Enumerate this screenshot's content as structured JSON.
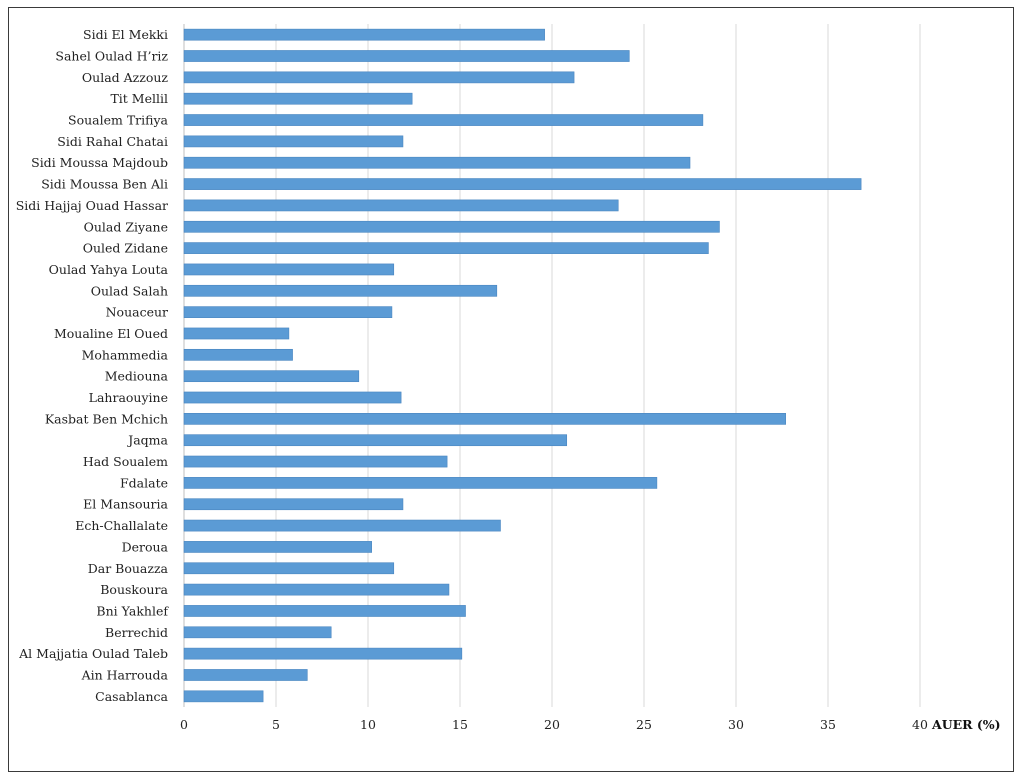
{
  "chart_data": {
    "type": "bar",
    "orientation": "horizontal",
    "categories": [
      "Sidi El Mekki",
      "Sahel Oulad H’riz",
      "Oulad Azzouz",
      "Tit Mellil",
      "Soualem Trifiya",
      "Sidi Rahal Chatai",
      "Sidi Moussa Majdoub",
      "Sidi Moussa Ben Ali",
      "Sidi Hajjaj Ouad Hassar",
      "Oulad Ziyane",
      "Ouled Zidane",
      "Oulad Yahya Louta",
      "Oulad Salah",
      "Nouaceur",
      "Moualine El Oued",
      "Mohammedia",
      "Mediouna",
      "Lahraouyine",
      "Kasbat Ben Mchich",
      "Jaqma",
      "Had Soualem",
      "Fdalate",
      "El Mansouria",
      "Ech-Challalate",
      "Deroua",
      "Dar Bouazza",
      "Bouskoura",
      "Bni Yakhlef",
      "Berrechid",
      "Al Majjatia Oulad Taleb",
      "Ain Harrouda",
      "Casablanca"
    ],
    "values": [
      19.6,
      24.2,
      21.2,
      12.4,
      28.2,
      11.9,
      27.5,
      36.8,
      23.6,
      29.1,
      28.5,
      11.4,
      17.0,
      11.3,
      5.7,
      5.9,
      9.5,
      11.8,
      32.7,
      20.8,
      14.3,
      25.7,
      11.9,
      17.2,
      10.2,
      11.4,
      14.4,
      15.3,
      8.0,
      15.1,
      6.7,
      4.3
    ],
    "xlim": [
      0,
      40
    ],
    "xticks": [
      "0",
      "5",
      "10",
      "15",
      "20",
      "25",
      "30",
      "35",
      "40"
    ],
    "xlabel": "AUER (%)",
    "ylabel": "",
    "title": "",
    "grid": "vertical",
    "bar_color": "#5b9bd5"
  }
}
